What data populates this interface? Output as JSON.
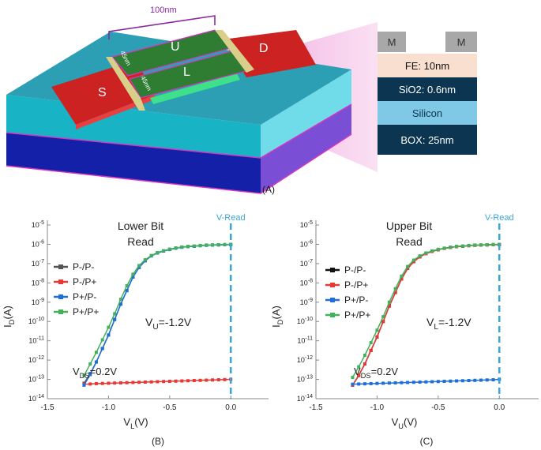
{
  "device": {
    "width_label": "100nm",
    "gate_u_label": "U",
    "gate_l_label": "L",
    "source_label": "S",
    "drain_label": "D",
    "dim_u_label": "45nm",
    "dim_l_label": "45nm",
    "caption": "(A)"
  },
  "stack": {
    "metal_left": "M",
    "metal_right": "M",
    "layers": [
      {
        "label": "FE: 10nm",
        "color": "#f9dfcf",
        "text_color": "#111111"
      },
      {
        "label": "SiO2: 0.6nm",
        "color": "#0b3550",
        "text_color": "#ffffff"
      },
      {
        "label": "Silicon",
        "color": "#7fc8e6",
        "text_color": "#0b3550"
      },
      {
        "label": "BOX: 25nm",
        "color": "#0b3550",
        "text_color": "#ffffff"
      }
    ]
  },
  "charts": [
    {
      "caption": "(B)",
      "title_line1": "Lower Bit",
      "title_line2": "Read",
      "xlabel": "VL(V)",
      "ylabel": "ID(A)",
      "bias_label": "VU=-1.2V",
      "vds_label": "VDS=0.2V",
      "vread_label": "V-Read"
    },
    {
      "caption": "(C)",
      "title_line1": "Upper Bit",
      "title_line2": "Read",
      "xlabel": "VU(V)",
      "ylabel": "ID(A)",
      "bias_label": "VL=-1.2V",
      "vds_label": "VDS=0.2V",
      "vread_label": "V-Read"
    }
  ],
  "chart_data": [
    {
      "type": "line",
      "x": [
        -1.2,
        -1.15,
        -1.1,
        -1.05,
        -1.0,
        -0.95,
        -0.9,
        -0.85,
        -0.8,
        -0.75,
        -0.7,
        -0.65,
        -0.6,
        -0.55,
        -0.5,
        -0.45,
        -0.4,
        -0.35,
        -0.3,
        -0.25,
        -0.2,
        -0.15,
        -0.1,
        -0.05,
        0.0
      ],
      "xticks": [
        -1.5,
        -1.0,
        -0.5,
        0.0
      ],
      "xtick_labels": [
        "-1.5",
        "-1.0",
        "-0.5",
        "0.0"
      ],
      "xlim": [
        -1.5,
        0.05
      ],
      "yscale": "log",
      "ylim_exponent": [
        -14,
        -5
      ],
      "ytick_labels": [
        "10-14",
        "10-13",
        "10-12",
        "10-11",
        "10-10",
        "10-9",
        "10-8",
        "10-7",
        "10-6",
        "10-5"
      ],
      "vline_x": 0.0,
      "legend_position": "left",
      "series": [
        {
          "name": "P-/P-",
          "color": "#555555",
          "log10_y": [
            -13.2,
            -12.7,
            -12.1,
            -11.4,
            -10.7,
            -9.9,
            -9.1,
            -8.4,
            -7.7,
            -7.2,
            -6.85,
            -6.6,
            -6.45,
            -6.35,
            -6.27,
            -6.2,
            -6.15,
            -6.12,
            -6.1,
            -6.07,
            -6.05,
            -6.04,
            -6.03,
            -6.02,
            -6.02
          ]
        },
        {
          "name": "P-/P+",
          "color": "#e53935",
          "log10_y": [
            -13.25,
            -13.24,
            -13.22,
            -13.21,
            -13.2,
            -13.19,
            -13.18,
            -13.17,
            -13.16,
            -13.15,
            -13.14,
            -13.13,
            -13.12,
            -13.11,
            -13.1,
            -13.09,
            -13.08,
            -13.07,
            -13.06,
            -13.05,
            -13.04,
            -13.03,
            -13.02,
            -13.01,
            -13.0
          ]
        },
        {
          "name": "P+/P-",
          "color": "#1e6fd9",
          "log10_y": [
            -13.3,
            -12.75,
            -12.1,
            -11.4,
            -10.7,
            -9.9,
            -9.1,
            -8.4,
            -7.7,
            -7.2,
            -6.85,
            -6.6,
            -6.45,
            -6.35,
            -6.27,
            -6.2,
            -6.15,
            -6.12,
            -6.1,
            -6.07,
            -6.05,
            -6.04,
            -6.03,
            -6.02,
            -6.02
          ]
        },
        {
          "name": "P+/P+",
          "color": "#43b05c",
          "log10_y": [
            -12.8,
            -12.2,
            -11.6,
            -10.95,
            -10.3,
            -9.6,
            -8.85,
            -8.15,
            -7.55,
            -7.1,
            -6.8,
            -6.58,
            -6.43,
            -6.33,
            -6.25,
            -6.19,
            -6.14,
            -6.11,
            -6.09,
            -6.06,
            -6.04,
            -6.03,
            -6.02,
            -6.01,
            -6.0
          ]
        }
      ]
    },
    {
      "type": "line",
      "x": [
        -1.2,
        -1.15,
        -1.1,
        -1.05,
        -1.0,
        -0.95,
        -0.9,
        -0.85,
        -0.8,
        -0.75,
        -0.7,
        -0.65,
        -0.6,
        -0.55,
        -0.5,
        -0.45,
        -0.4,
        -0.35,
        -0.3,
        -0.25,
        -0.2,
        -0.15,
        -0.1,
        -0.05,
        0.0
      ],
      "xticks": [
        -1.5,
        -1.0,
        -0.5,
        0.0
      ],
      "xtick_labels": [
        "-1.5",
        "-1.0",
        "-0.5",
        "0.0"
      ],
      "xlim": [
        -1.5,
        0.05
      ],
      "yscale": "log",
      "ylim_exponent": [
        -14,
        -5
      ],
      "ytick_labels": [
        "10-14",
        "10-13",
        "10-12",
        "10-11",
        "10-10",
        "10-9",
        "10-8",
        "10-7",
        "10-6",
        "10-5"
      ],
      "vline_x": 0.0,
      "legend_position": "left",
      "series": [
        {
          "name": "P-/P-",
          "color": "#111111",
          "log10_y": [
            -13.3,
            -12.8,
            -12.2,
            -11.5,
            -10.8,
            -10.0,
            -9.2,
            -8.5,
            -7.8,
            -7.25,
            -6.9,
            -6.65,
            -6.48,
            -6.37,
            -6.28,
            -6.21,
            -6.16,
            -6.12,
            -6.1,
            -6.07,
            -6.05,
            -6.04,
            -6.03,
            -6.02,
            -6.02
          ]
        },
        {
          "name": "P-/P+",
          "color": "#e53935",
          "log10_y": [
            -13.3,
            -12.8,
            -12.2,
            -11.5,
            -10.8,
            -10.0,
            -9.2,
            -8.5,
            -7.8,
            -7.25,
            -6.9,
            -6.65,
            -6.48,
            -6.37,
            -6.28,
            -6.21,
            -6.16,
            -6.12,
            -6.1,
            -6.07,
            -6.05,
            -6.04,
            -6.03,
            -6.02,
            -6.02
          ]
        },
        {
          "name": "P+/P-",
          "color": "#1e6fd9",
          "log10_y": [
            -13.25,
            -13.24,
            -13.23,
            -13.22,
            -13.21,
            -13.2,
            -13.19,
            -13.18,
            -13.17,
            -13.16,
            -13.15,
            -13.14,
            -13.13,
            -13.12,
            -13.11,
            -13.1,
            -13.09,
            -13.08,
            -13.07,
            -13.06,
            -13.05,
            -13.04,
            -13.03,
            -13.02,
            -13.0
          ]
        },
        {
          "name": "P+/P+",
          "color": "#43b05c",
          "log10_y": [
            -12.9,
            -12.35,
            -11.75,
            -11.1,
            -10.45,
            -9.75,
            -9.0,
            -8.3,
            -7.65,
            -7.15,
            -6.82,
            -6.6,
            -6.45,
            -6.34,
            -6.26,
            -6.2,
            -6.15,
            -6.11,
            -6.09,
            -6.06,
            -6.04,
            -6.03,
            -6.02,
            -6.01,
            -6.0
          ]
        }
      ]
    }
  ]
}
